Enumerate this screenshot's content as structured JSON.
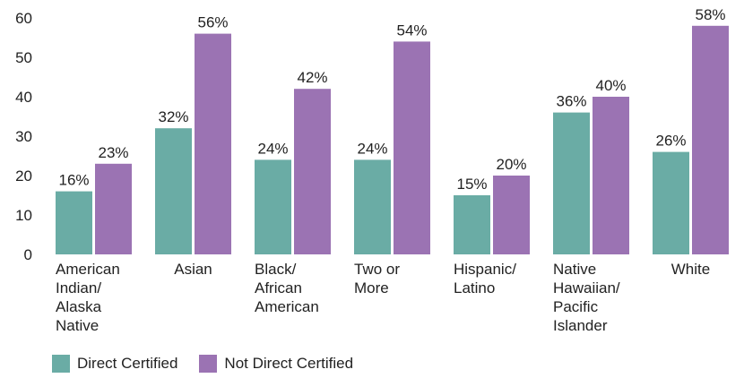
{
  "chart_data": {
    "type": "bar",
    "categories": [
      [
        "American",
        "Indian/",
        "Alaska",
        "Native"
      ],
      [
        "Asian"
      ],
      [
        "Black/",
        "African",
        "American"
      ],
      [
        "Two or",
        "More"
      ],
      [
        "Hispanic/",
        "Latino"
      ],
      [
        "Native",
        "Hawaiian/",
        "Pacific",
        "Islander"
      ],
      [
        "White"
      ]
    ],
    "series": [
      {
        "name": "Direct Certified",
        "color": "#6aaca5",
        "values": [
          16,
          32,
          24,
          24,
          15,
          36,
          26
        ],
        "labels": [
          "16%",
          "32%",
          "24%",
          "24%",
          "15%",
          "36%",
          "26%"
        ]
      },
      {
        "name": "Not Direct Certified",
        "color": "#9b73b3",
        "values": [
          23,
          56,
          42,
          54,
          20,
          40,
          58
        ],
        "labels": [
          "23%",
          "56%",
          "42%",
          "54%",
          "20%",
          "40%",
          "58%"
        ]
      }
    ],
    "ylim": [
      0,
      60
    ],
    "yticks": [
      "0",
      "10",
      "20",
      "30",
      "40",
      "50",
      "60"
    ],
    "title": "",
    "xlabel": "",
    "ylabel": "",
    "legend_position": "bottom-left",
    "grid": false
  }
}
